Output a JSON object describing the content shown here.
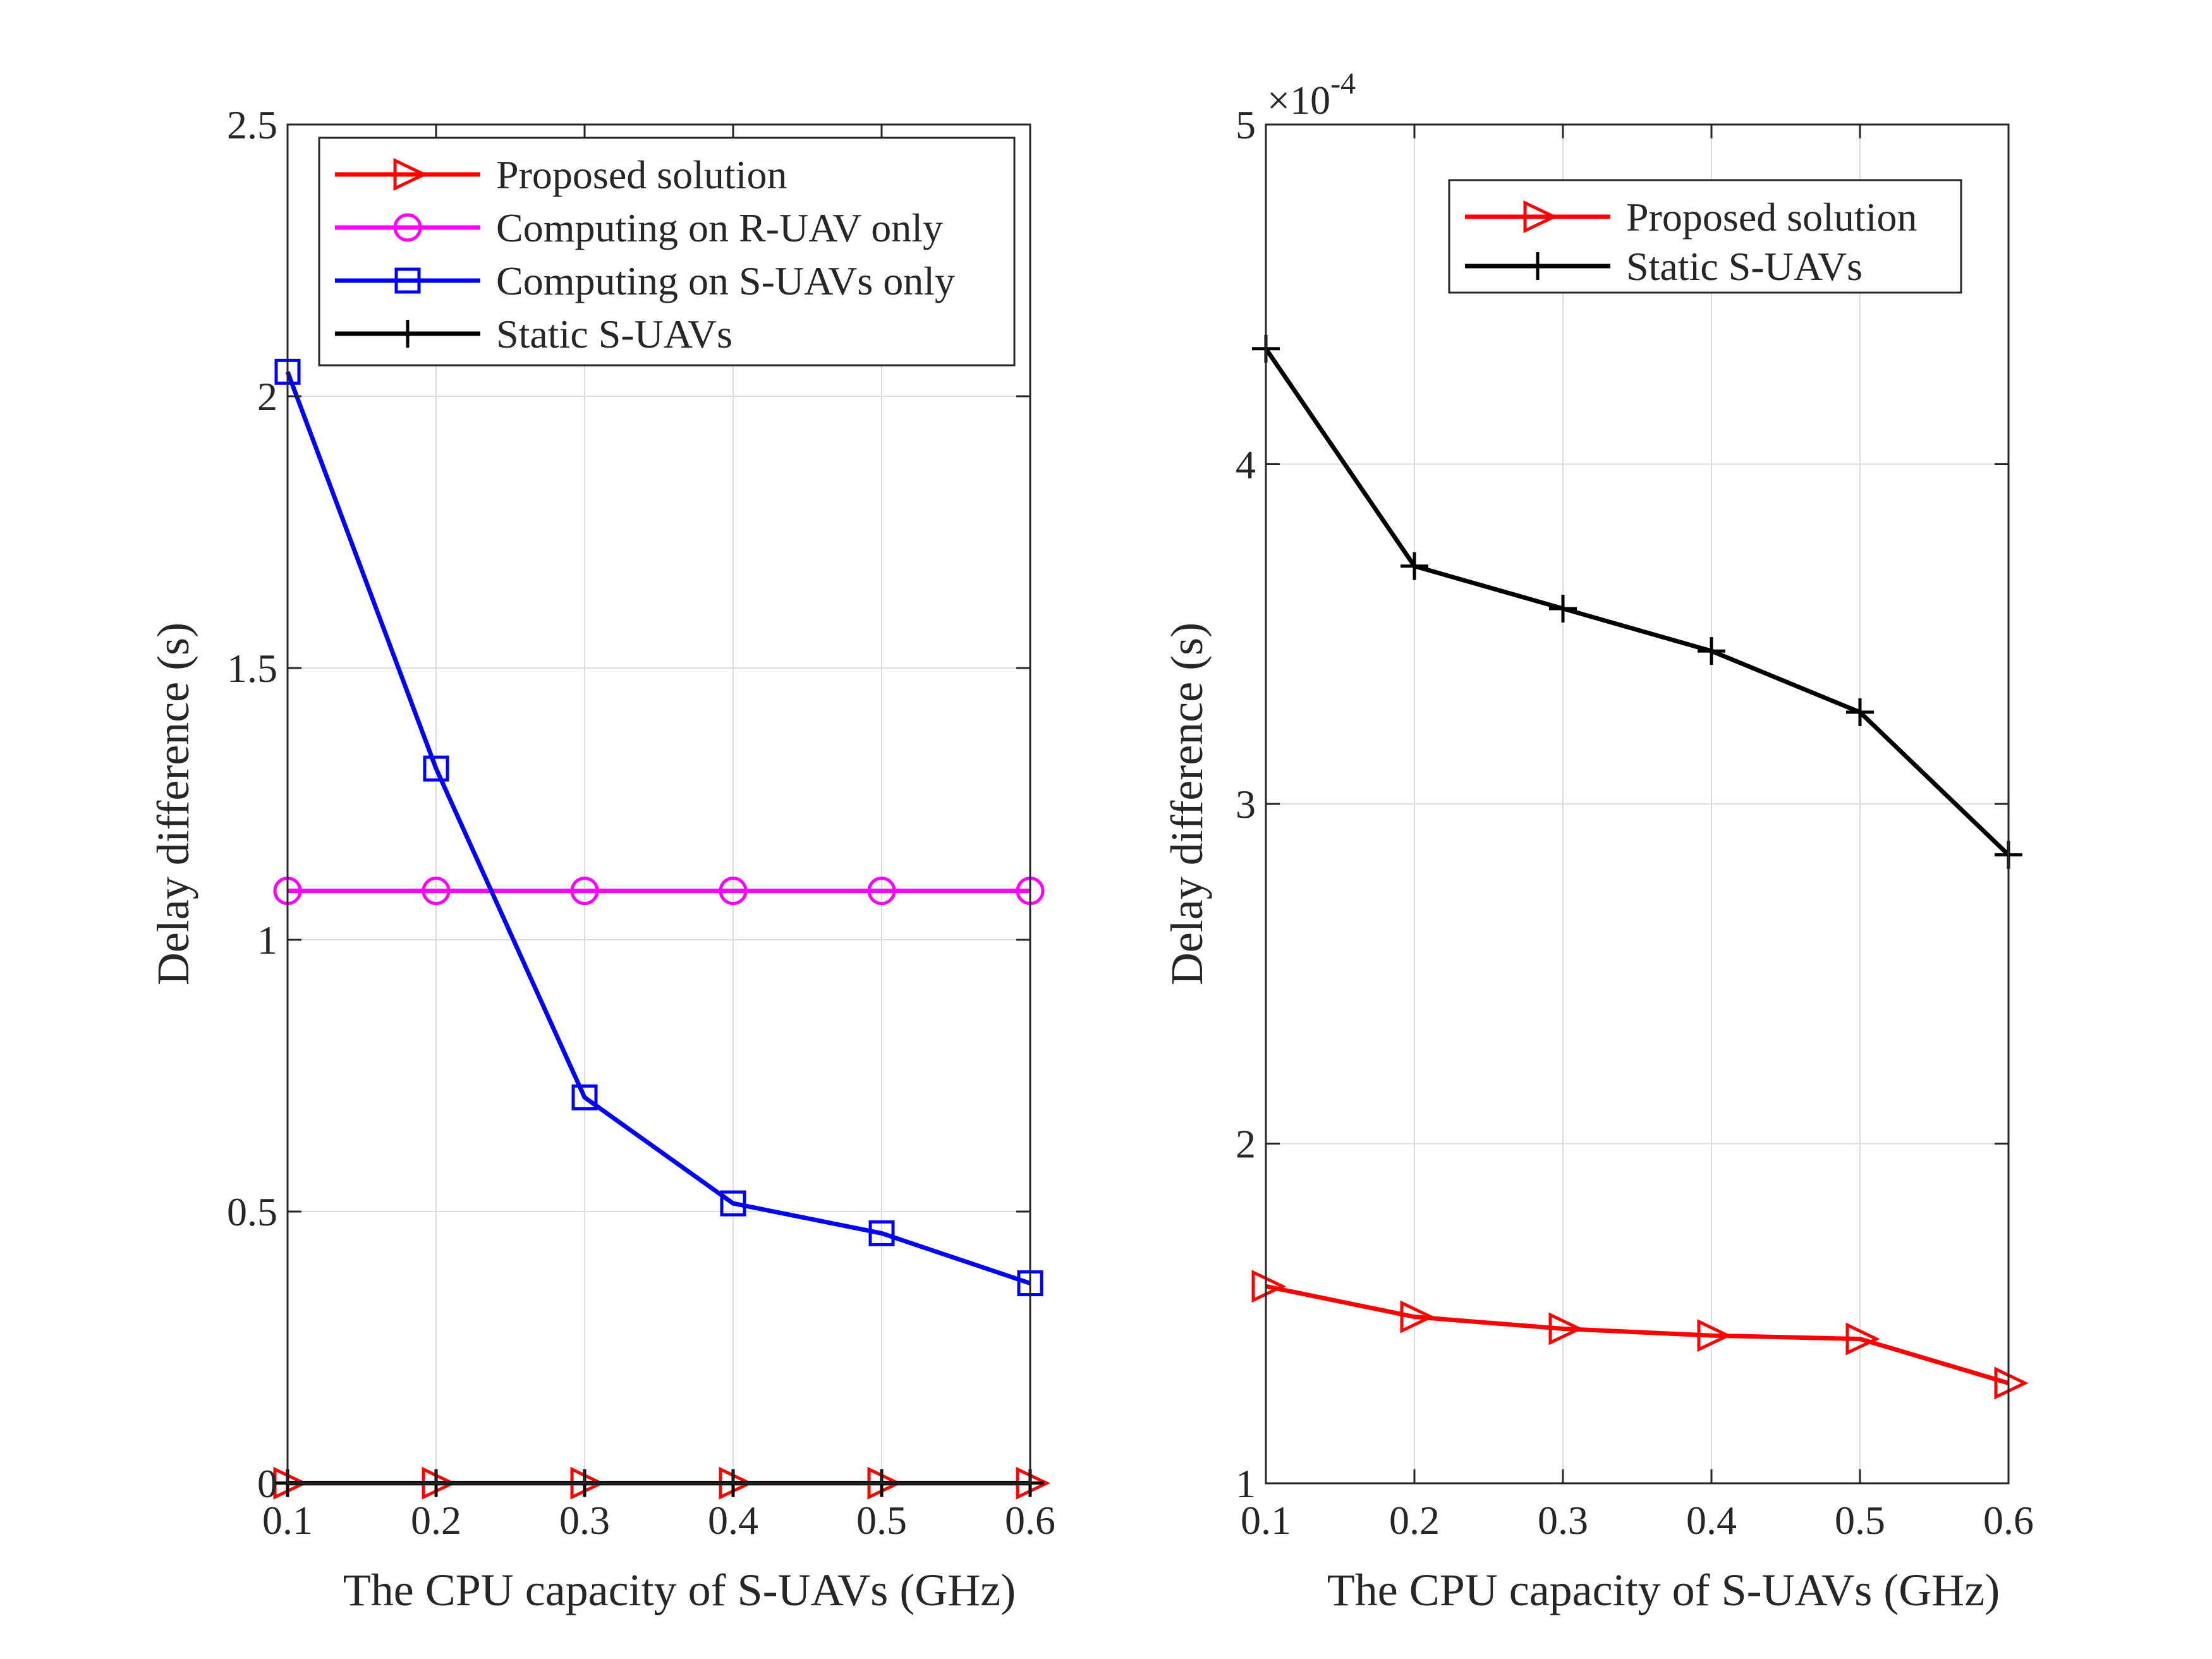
{
  "chart_data": [
    {
      "type": "line",
      "title": "",
      "xlabel": "The CPU capacity of S-UAVs (GHz)",
      "ylabel": "Delay difference (s)",
      "x": [
        0.1,
        0.2,
        0.3,
        0.4,
        0.5,
        0.6
      ],
      "xticks": [
        "0.1",
        "0.2",
        "0.3",
        "0.4",
        "0.5",
        "0.6"
      ],
      "yticks": [
        "0",
        "0.5",
        "1",
        "1.5",
        "2",
        "2.5"
      ],
      "xlim": [
        0.1,
        0.6
      ],
      "ylim": [
        0,
        2.5
      ],
      "grid": true,
      "legend_position": "top-right",
      "series": [
        {
          "name": "Proposed solution",
          "color": "#ff0000",
          "marker": "triangle-right",
          "values": [
            0.0002,
            0.0002,
            0.0002,
            0.0002,
            0.0002,
            0.0002
          ]
        },
        {
          "name": "Computing on R-UAV only",
          "color": "#ff00ff",
          "marker": "circle",
          "values": [
            1.09,
            1.09,
            1.09,
            1.09,
            1.09,
            1.09
          ]
        },
        {
          "name": "Computing on S-UAVs only",
          "color": "#0000ff",
          "marker": "square",
          "values": [
            2.045,
            1.315,
            0.71,
            0.515,
            0.46,
            0.368
          ]
        },
        {
          "name": "Static S-UAVs",
          "color": "#000000",
          "marker": "plus",
          "values": [
            0.0004,
            0.0004,
            0.0004,
            0.0004,
            0.0004,
            0.0004
          ]
        }
      ]
    },
    {
      "type": "line",
      "title": "",
      "xlabel": "The CPU capacity of S-UAVs (GHz)",
      "ylabel": "Delay difference (s)",
      "y_exponent_base": "×10",
      "y_exponent_power": "-4",
      "x": [
        0.1,
        0.2,
        0.3,
        0.4,
        0.5,
        0.6
      ],
      "xticks": [
        "0.1",
        "0.2",
        "0.3",
        "0.4",
        "0.5",
        "0.6"
      ],
      "yticks": [
        "1",
        "2",
        "3",
        "4",
        "5"
      ],
      "xlim": [
        0.1,
        0.6
      ],
      "ylim": [
        1,
        5
      ],
      "grid": true,
      "legend_position": "top-right",
      "series": [
        {
          "name": "Proposed solution",
          "color": "#ff0000",
          "marker": "triangle-right",
          "values": [
            1.58,
            1.49,
            1.455,
            1.435,
            1.425,
            1.295
          ]
        },
        {
          "name": "Static S-UAVs",
          "color": "#000000",
          "marker": "plus",
          "values": [
            4.34,
            3.7,
            3.575,
            3.45,
            3.27,
            2.85
          ]
        }
      ]
    }
  ]
}
